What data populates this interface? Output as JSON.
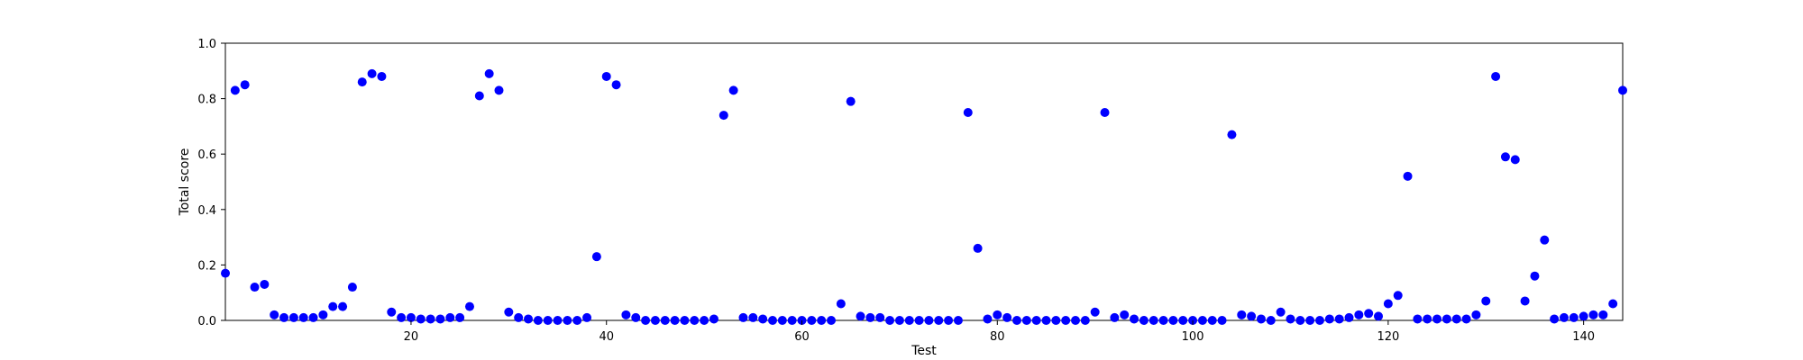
{
  "chart_data": {
    "type": "scatter",
    "title": "",
    "xlabel": "Test",
    "ylabel": "Total score",
    "xlim": [
      1,
      144
    ],
    "ylim": [
      0.0,
      1.0
    ],
    "xticks": [
      20,
      40,
      60,
      80,
      100,
      120,
      140
    ],
    "yticks": [
      "0.0",
      "0.2",
      "0.4",
      "0.6",
      "0.8",
      "1.0"
    ],
    "grid": false,
    "marker_color": "#0000ff",
    "x": [
      1,
      2,
      3,
      4,
      5,
      6,
      7,
      8,
      9,
      10,
      11,
      12,
      13,
      14,
      15,
      16,
      17,
      18,
      19,
      20,
      21,
      22,
      23,
      24,
      25,
      26,
      27,
      28,
      29,
      30,
      31,
      32,
      33,
      34,
      35,
      36,
      37,
      38,
      39,
      40,
      41,
      42,
      43,
      44,
      45,
      46,
      47,
      48,
      49,
      50,
      51,
      52,
      53,
      54,
      55,
      56,
      57,
      58,
      59,
      60,
      61,
      62,
      63,
      64,
      65,
      66,
      67,
      68,
      69,
      70,
      71,
      72,
      73,
      74,
      75,
      76,
      77,
      78,
      79,
      80,
      81,
      82,
      83,
      84,
      85,
      86,
      87,
      88,
      89,
      90,
      91,
      92,
      93,
      94,
      95,
      96,
      97,
      98,
      99,
      100,
      101,
      102,
      103,
      104,
      105,
      106,
      107,
      108,
      109,
      110,
      111,
      112,
      113,
      114,
      115,
      116,
      117,
      118,
      119,
      120,
      121,
      122,
      123,
      124,
      125,
      126,
      127,
      128,
      129,
      130,
      131,
      132,
      133,
      134,
      135,
      136,
      137,
      138,
      139,
      140,
      141,
      142,
      143,
      144
    ],
    "y": [
      0.17,
      0.83,
      0.85,
      0.12,
      0.13,
      0.02,
      0.01,
      0.01,
      0.01,
      0.01,
      0.02,
      0.05,
      0.05,
      0.12,
      0.86,
      0.89,
      0.88,
      0.03,
      0.01,
      0.01,
      0.005,
      0.005,
      0.005,
      0.01,
      0.01,
      0.05,
      0.81,
      0.89,
      0.83,
      0.03,
      0.01,
      0.005,
      0.0,
      0.0,
      0.0,
      0.0,
      0.0,
      0.01,
      0.23,
      0.88,
      0.85,
      0.02,
      0.01,
      0.0,
      0.0,
      0.0,
      0.0,
      0.0,
      0.0,
      0.0,
      0.005,
      0.74,
      0.83,
      0.01,
      0.01,
      0.005,
      0.0,
      0.0,
      0.0,
      0.0,
      0.0,
      0.0,
      0.0,
      0.06,
      0.79,
      0.015,
      0.01,
      0.01,
      0.0,
      0.0,
      0.0,
      0.0,
      0.0,
      0.0,
      0.0,
      0.0,
      0.75,
      0.26,
      0.005,
      0.02,
      0.01,
      0.0,
      0.0,
      0.0,
      0.0,
      0.0,
      0.0,
      0.0,
      0.0,
      0.03,
      0.75,
      0.01,
      0.02,
      0.005,
      0.0,
      0.0,
      0.0,
      0.0,
      0.0,
      0.0,
      0.0,
      0.0,
      0.0,
      0.67,
      0.02,
      0.015,
      0.005,
      0.0,
      0.03,
      0.005,
      0.0,
      0.0,
      0.0,
      0.005,
      0.005,
      0.01,
      0.02,
      0.025,
      0.015,
      0.06,
      0.09,
      0.52,
      0.005,
      0.005,
      0.005,
      0.005,
      0.005,
      0.005,
      0.02,
      0.07,
      0.88,
      0.59,
      0.58,
      0.07,
      0.16,
      0.29,
      0.005,
      0.01,
      0.01,
      0.015,
      0.02,
      0.02,
      0.06,
      0.83
    ]
  }
}
